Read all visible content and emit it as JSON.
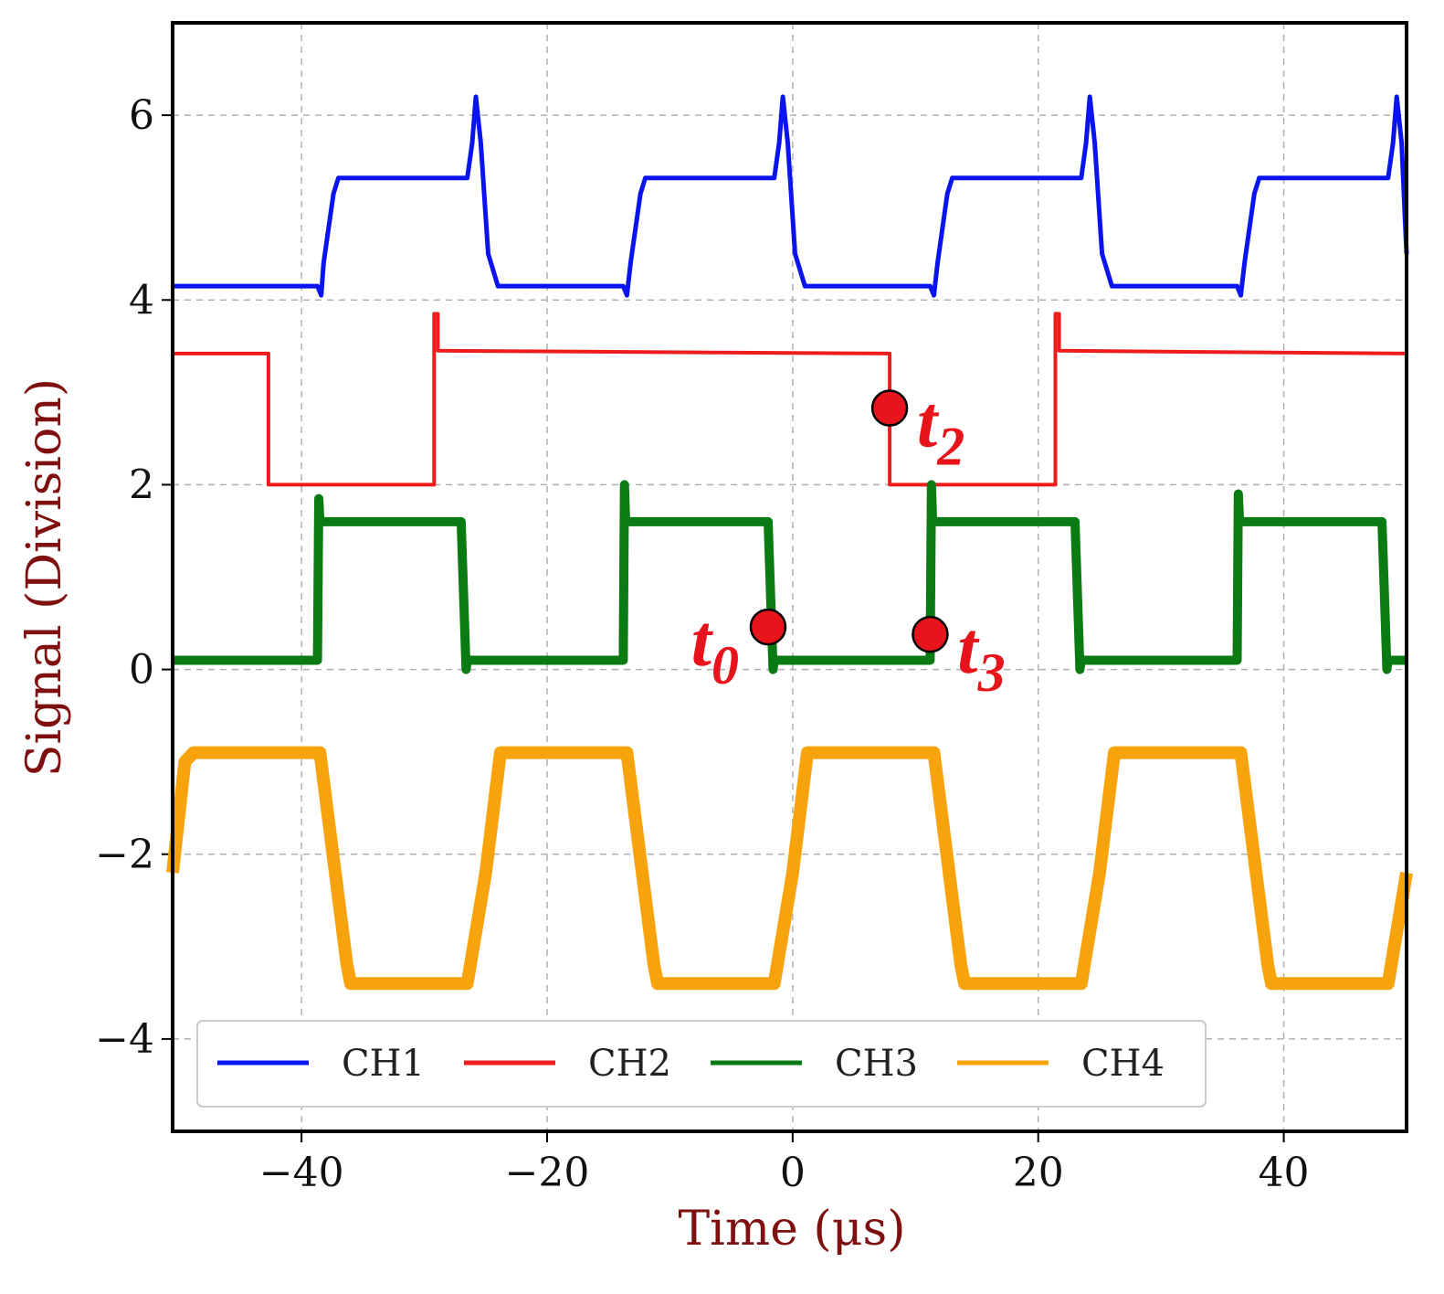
{
  "chart_data": {
    "type": "line",
    "title": "",
    "xlabel": "Time (μs)",
    "ylabel": "Signal (Division)",
    "xlim": [
      -50.5,
      50
    ],
    "ylim": [
      -5,
      7
    ],
    "xticks": [
      -40,
      -20,
      0,
      20,
      40
    ],
    "xtick_labels": [
      "−40",
      "−20",
      "0",
      "20",
      "40"
    ],
    "yticks": [
      -4,
      -2,
      0,
      2,
      4,
      6
    ],
    "ytick_labels": [
      "−4",
      "−2",
      "0",
      "2",
      "4",
      "6"
    ],
    "grid": true,
    "legend_position": "bottom",
    "series": [
      {
        "name": "CH1",
        "color": "#0a14f0",
        "x": [
          -50.5,
          -38.7,
          -38.4,
          -38.2,
          -37.4,
          -37.0,
          -26.5,
          -26.1,
          -25.8,
          -25.4,
          -24.8,
          -24.0,
          -13.8,
          -13.5,
          -13.2,
          -12.4,
          -12.0,
          -1.5,
          -1.1,
          -0.8,
          -0.4,
          0.2,
          1.0,
          11.2,
          11.5,
          11.8,
          12.6,
          13.0,
          23.5,
          23.9,
          24.2,
          24.6,
          25.2,
          26.0,
          36.2,
          36.5,
          36.8,
          37.6,
          38.0,
          48.5,
          48.9,
          49.2,
          49.6,
          50.0
        ],
        "y": [
          4.15,
          4.15,
          4.05,
          4.4,
          5.15,
          5.32,
          5.32,
          5.7,
          6.2,
          5.7,
          4.5,
          4.15,
          4.15,
          4.05,
          4.4,
          5.15,
          5.32,
          5.32,
          5.7,
          6.2,
          5.7,
          4.5,
          4.15,
          4.15,
          4.05,
          4.4,
          5.15,
          5.32,
          5.32,
          5.7,
          6.2,
          5.7,
          4.5,
          4.15,
          4.15,
          4.05,
          4.4,
          5.15,
          5.32,
          5.32,
          5.7,
          6.2,
          5.7,
          4.5
        ]
      },
      {
        "name": "CH2",
        "color": "#ee1c1c",
        "x": [
          -50.5,
          -42.7,
          -42.7,
          -29.2,
          -29.2,
          -28.9,
          -28.9,
          7.9,
          7.9,
          21.4,
          21.4,
          21.7,
          21.7,
          50.0
        ],
        "y": [
          3.42,
          3.42,
          2.0,
          2.0,
          3.85,
          3.85,
          3.45,
          3.42,
          2.0,
          2.0,
          3.85,
          3.85,
          3.45,
          3.42
        ]
      },
      {
        "name": "CH3",
        "color": "#0a7a12",
        "x": [
          -50.5,
          -38.7,
          -38.6,
          -38.5,
          -27.0,
          -26.6,
          -26.5,
          -13.8,
          -13.7,
          -13.6,
          -2.0,
          -1.6,
          -1.5,
          11.2,
          11.3,
          11.4,
          23.0,
          23.4,
          23.5,
          36.2,
          36.3,
          36.4,
          48.0,
          48.4,
          48.5,
          50.0
        ],
        "y": [
          0.1,
          0.1,
          1.85,
          1.6,
          1.6,
          0.0,
          0.1,
          0.1,
          2.0,
          1.6,
          1.6,
          0.0,
          0.1,
          0.1,
          2.0,
          1.6,
          1.6,
          0.0,
          0.1,
          0.1,
          1.9,
          1.6,
          1.6,
          0.0,
          0.1,
          0.1
        ]
      },
      {
        "name": "CH4",
        "color": "#f7a40c",
        "x": [
          -50.5,
          -49.5,
          -48.8,
          -38.5,
          -36.3,
          -36.0,
          -26.5,
          -25.0,
          -23.8,
          -13.5,
          -11.3,
          -11.0,
          -1.5,
          0.0,
          1.2,
          11.5,
          13.7,
          14.0,
          23.5,
          25.0,
          26.2,
          36.5,
          38.7,
          39.0,
          48.5,
          50.0
        ],
        "y": [
          -2.2,
          -1.0,
          -0.9,
          -0.9,
          -3.2,
          -3.4,
          -3.4,
          -2.2,
          -0.9,
          -0.9,
          -3.2,
          -3.4,
          -3.4,
          -2.2,
          -0.9,
          -0.9,
          -3.2,
          -3.4,
          -3.4,
          -2.2,
          -0.9,
          -0.9,
          -3.2,
          -3.4,
          -3.4,
          -2.2
        ]
      }
    ],
    "markers": [
      {
        "label": "t",
        "sub": "0",
        "x": -2.0,
        "y": 0.46,
        "label_side": "left"
      },
      {
        "label": "t",
        "sub": "2",
        "x": 7.9,
        "y": 2.83,
        "label_side": "right"
      },
      {
        "label": "t",
        "sub": "3",
        "x": 11.2,
        "y": 0.38,
        "label_side": "right"
      }
    ],
    "marker_color": "#e8141b"
  }
}
